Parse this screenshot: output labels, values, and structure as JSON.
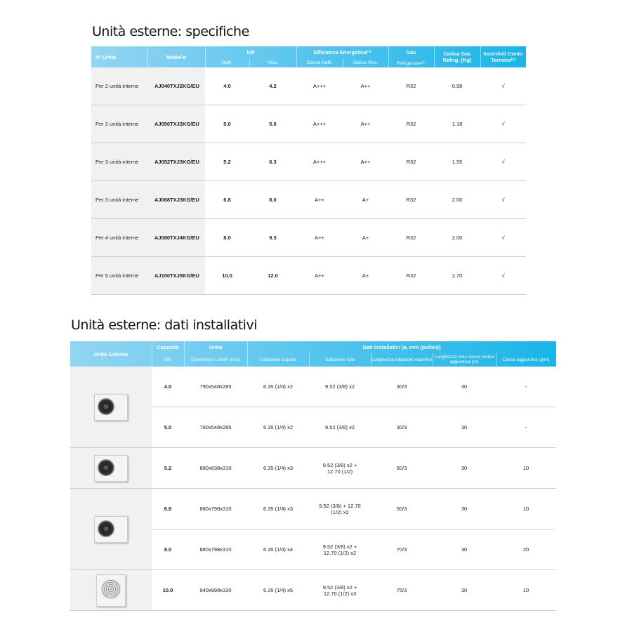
{
  "section1": {
    "title": "Unità esterne: specifiche",
    "headers": {
      "n_unita": "N° Unità",
      "modello": "Modello",
      "kw": "kW",
      "raffr": "Raffr.",
      "risc": "Risc.",
      "efficienza": "Efficienza Energetica⁽¹⁾",
      "classe_raffr": "Classe Raffr.",
      "classe_risc": "Classe Risc.",
      "gas": "Gas",
      "refrigerante": "Refrigerante⁽²⁾",
      "carica": "Carica Gas Refrig. (Kg)",
      "incentivi": "Incentivi/ Conto Termico⁽³⁾"
    },
    "rows": [
      [
        "Per 2 unità interne",
        "AJ040TXJ2KG/EU",
        "4.0",
        "4.2",
        "A+++",
        "A++",
        "R32",
        "0.98",
        "√"
      ],
      [
        "Per 2 unità interne",
        "AJ050TXJ2KG/EU",
        "5.0",
        "5.6",
        "A+++",
        "A++",
        "R32",
        "1.18",
        "√"
      ],
      [
        "Per 3 unità interne",
        "AJ052TXJ3KG/EU",
        "5.2",
        "6.3",
        "A+++",
        "A++",
        "R32",
        "1.55",
        "√"
      ],
      [
        "Per 3 unità interne",
        "AJ068TXJ3KG/EU",
        "6.8",
        "8.0",
        "A++",
        "A+",
        "R32",
        "2.00",
        "√"
      ],
      [
        "Per 4 unità interne",
        "AJ080TXJ4KG/EU",
        "8.0",
        "9.3",
        "A++",
        "A+",
        "R32",
        "2.00",
        "√"
      ],
      [
        "Per 5 unità interne",
        "AJ100TXJ5KG/EU",
        "10.0",
        "12.0",
        "A++",
        "A+",
        "R32",
        "2.70",
        "√"
      ]
    ]
  },
  "section2": {
    "title": "Unità esterne: dati installativi",
    "headers": {
      "unita_esterna": "Unità Esterna",
      "capacita": "Capacità",
      "kw": "kW",
      "unita": "Unità",
      "dimensioni": "Dimensioni LxAxP (mm)",
      "dati": "Dati installativi [ø, mm (pollici)]",
      "liquido": "Tubazione Liquido",
      "gas": "Tubazione Gas",
      "lunghezza": "Lunghezza tubazioni max/min",
      "lunghezza_max": "Lunghezza max senza carica aggiuntiva (m)",
      "carica": "Carica aggiuntiva (g/m)"
    },
    "rows": [
      [
        "4.0",
        "790x548x285",
        "6.35 (1/4) x2",
        "9.52 (3/8) x2",
        "30/3",
        "30",
        "-"
      ],
      [
        "5.0",
        "790x548x285",
        "6.35 (1/4) x2",
        "9.52 (3/8) x2",
        "30/3",
        "30",
        "-"
      ],
      [
        "5.2",
        "880x638x310",
        "6.35 (1/4) x3",
        "9.52 (3/8) x2 + 12.70 (1/2)",
        "50/3",
        "30",
        "10"
      ],
      [
        "6.8",
        "880x798x310",
        "6.35 (1/4) x3",
        "9.52 (3/8) + 12.70 (1/2) x2",
        "50/3",
        "30",
        "10"
      ],
      [
        "8.0",
        "880x798x310",
        "6.35 (1/4) x4",
        "9.52 (3/8) x2 + 12.70 (1/2) x2",
        "70/3",
        "30",
        "20"
      ],
      [
        "10.0",
        "940x998x330",
        "6.35 (1/4) x5",
        "9.52 (3/8) x2 + 12.70 (1/2) x3",
        "75/3",
        "30",
        "10"
      ]
    ]
  }
}
